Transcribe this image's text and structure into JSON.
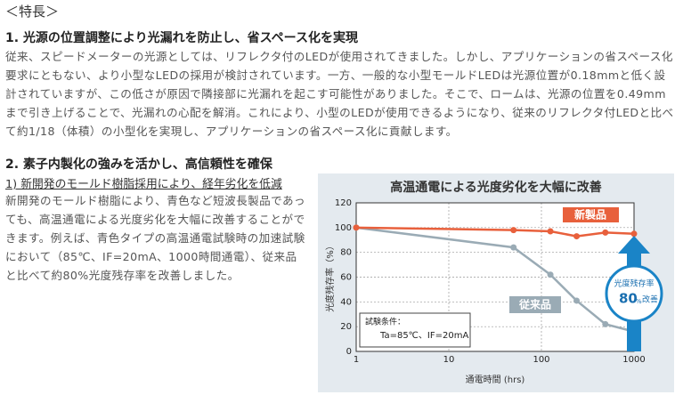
{
  "header": "＜特長＞",
  "sections": [
    {
      "title": "1. 光源の位置調整により光漏れを防止し、省スペース化を実現",
      "body": "従来、スピードメーターの光源としては、リフレクタ付のLEDが使用されてきました。しかし、アプリケーションの省スペース化要求にともない、より小型なLEDの採用が検討されています。一方、一般的な小型モールドLEDは光源位置が0.18mmと低く設計されていますが、この低さが原因で隣接部に光漏れを起こす可能性がありました。そこで、ロームは、光源の位置を0.49mmまで引き上げることで、光漏れの心配を解消。これにより、小型のLEDが使用できるようになり、従来のリフレクタ付LEDと比べて約1/18（体積）の小型化を実現し、アプリケーションの省スペース化に貢献します。"
    },
    {
      "title": "2. 素子内製化の強みを活かし、高信頼性を確保",
      "subtitle": "1) 新開発のモールド樹脂採用により、経年劣化を低減",
      "body": "新開発のモールド樹脂により、青色など短波長製品であっても、高温通電による光度劣化を大幅に改善することができます。例えば、青色タイプの高温通電試験時の加速試験において（85℃、IF=20mA、1000時間通電）、従来品と比べて約80%光度残存率を改善しました。"
    }
  ],
  "chart_data": {
    "type": "line",
    "title": "高温通電による光度劣化を大幅に改善",
    "xlabel": "通電時間 (hrs)",
    "ylabel": "光度残存率（%）",
    "x": [
      1,
      50,
      125,
      240,
      490,
      1000
    ],
    "xlog": true,
    "xlim": [
      1,
      1000
    ],
    "xticks": [
      1,
      10,
      100,
      1000
    ],
    "ylim": [
      0,
      120
    ],
    "yticks": [
      0,
      20,
      40,
      60,
      80,
      100,
      120
    ],
    "grid": true,
    "series": [
      {
        "name": "新製品",
        "color": "#e8603c",
        "values": [
          100,
          98,
          97,
          93,
          96,
          95
        ]
      },
      {
        "name": "従来品",
        "color": "#9aabb5",
        "values": [
          100,
          84,
          62,
          41,
          22,
          16
        ]
      }
    ],
    "conditions_title": "試験条件：",
    "conditions": "Ta=85℃、IF=20mA",
    "badge": [
      "光度残存率",
      "80",
      "%",
      "改善"
    ]
  }
}
